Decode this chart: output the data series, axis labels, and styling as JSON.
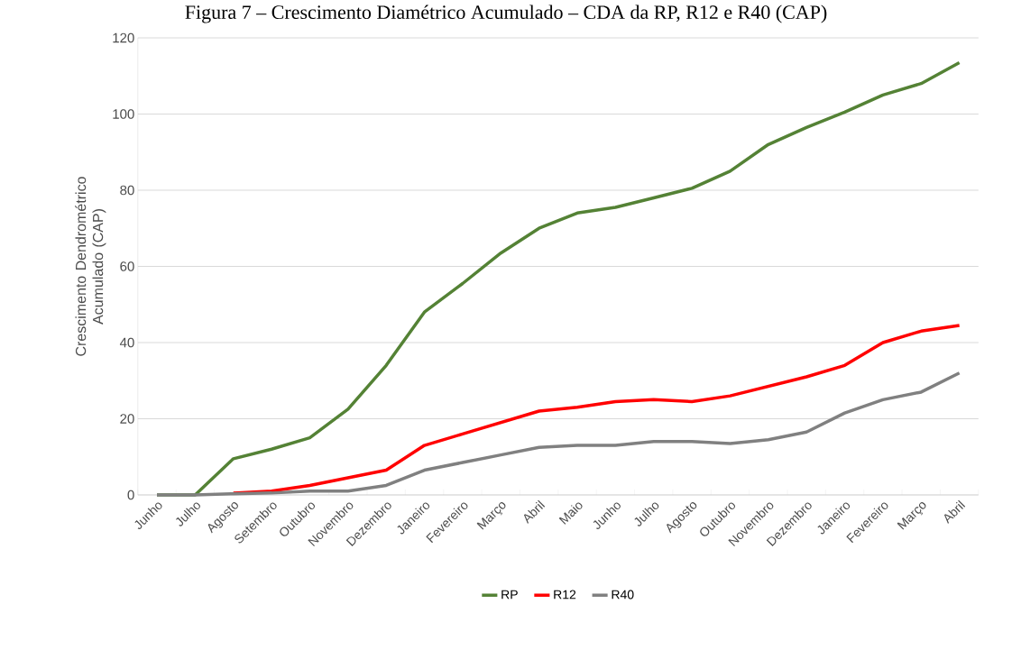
{
  "chart_data": {
    "type": "line",
    "title": "Figura 7 – Crescimento Diamétrico Acumulado – CDA da RP, R12 e R40 (CAP)",
    "ylabel": "Crescimento Dendrométrico Acumulado (CAP)",
    "categories": [
      "Junho",
      "Julho",
      "Agosto",
      "Setembro",
      "Outubro",
      "Novembro",
      "Dezembro",
      "Janeiro",
      "Fevereiro",
      "Março",
      "Abril",
      "Maio",
      "Junho",
      "Julho",
      "Agosto",
      "Outubro",
      "Novembro",
      "Dezembro",
      "Janeiro",
      "Fevereiro",
      "Março",
      "Abril"
    ],
    "series": [
      {
        "name": "RP",
        "color": "#548235",
        "values": [
          0,
          0,
          9.5,
          12,
          15,
          22.5,
          34,
          48,
          55.5,
          63.5,
          70,
          74,
          75.5,
          78,
          80.5,
          85,
          92,
          96.5,
          100.5,
          105,
          108,
          113.5
        ]
      },
      {
        "name": "R12",
        "color": "#ff0000",
        "values": [
          null,
          null,
          0.5,
          1,
          2.5,
          4.5,
          6.5,
          13,
          16,
          19,
          22,
          23,
          24.5,
          25,
          24.5,
          26,
          28.5,
          31,
          34,
          40,
          43,
          44.5
        ]
      },
      {
        "name": "R40",
        "color": "#808080",
        "values": [
          0,
          0,
          0.3,
          0.5,
          1,
          1,
          2.5,
          6.5,
          8.5,
          10.5,
          12.5,
          13,
          13,
          14,
          14,
          13.5,
          14.5,
          16.5,
          21.5,
          25,
          27,
          32
        ]
      }
    ],
    "ylim": [
      0,
      120
    ],
    "yticks": [
      0,
      20,
      40,
      60,
      80,
      100,
      120
    ],
    "grid": "y",
    "legend": "bottom",
    "marker": "none",
    "line_style": "solid"
  }
}
